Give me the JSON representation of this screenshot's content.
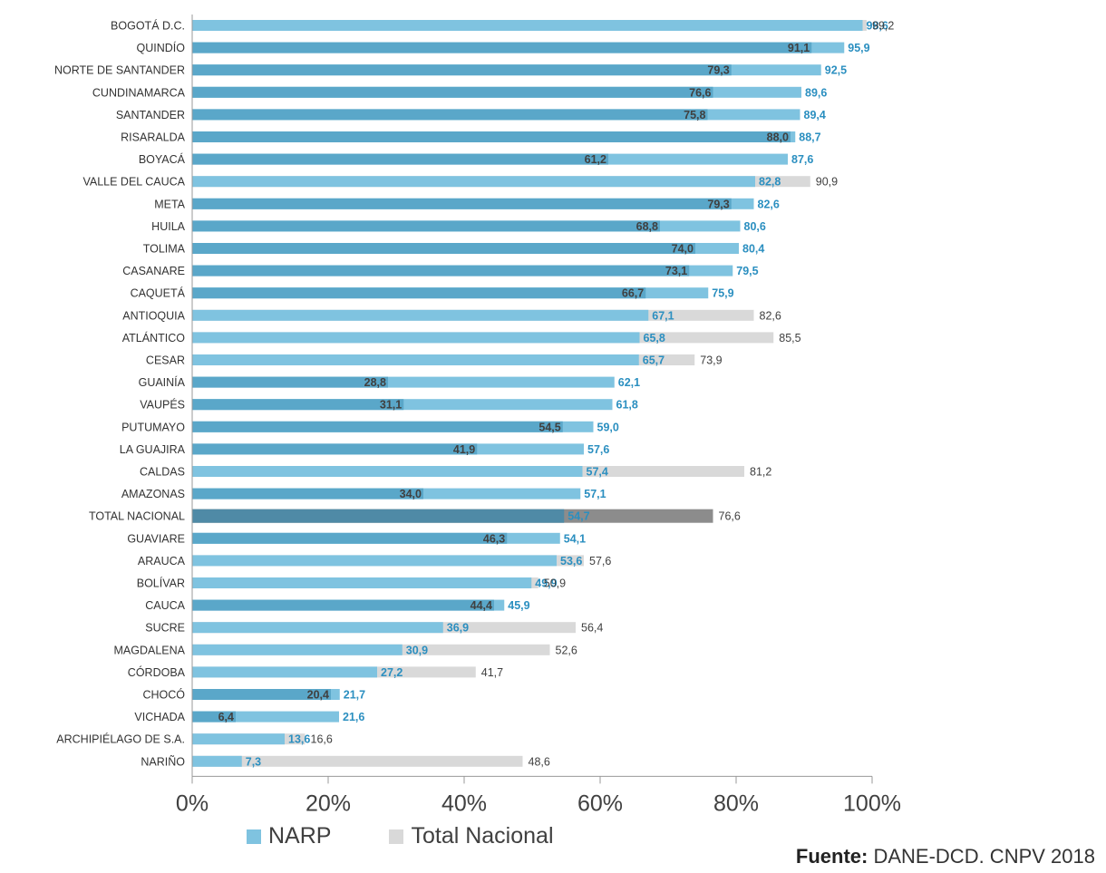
{
  "chart_data": {
    "type": "bar",
    "orientation": "horizontal",
    "categories": [
      "BOGOTÁ D.C.",
      "QUINDÍO",
      "NORTE DE SANTANDER",
      "CUNDINAMARCA",
      "SANTANDER",
      "RISARALDA",
      "BOYACÁ",
      "VALLE DEL CAUCA",
      "META",
      "HUILA",
      "TOLIMA",
      "CASANARE",
      "CAQUETÁ",
      "ANTIOQUIA",
      "ATLÁNTICO",
      "CESAR",
      "GUAINÍA",
      "VAUPÉS",
      "PUTUMAYO",
      "LA GUAJIRA",
      "CALDAS",
      "AMAZONAS",
      "TOTAL NACIONAL",
      "GUAVIARE",
      "ARAUCA",
      "BOLÍVAR",
      "CAUCA",
      "SUCRE",
      "MAGDALENA",
      "CÓRDOBA",
      "CHOCÓ",
      "VICHADA",
      "ARCHIPIÉLAGO DE S.A.",
      "NARIÑO"
    ],
    "series": [
      {
        "name": "NARP",
        "values": [
          98.6,
          95.9,
          92.5,
          89.6,
          89.4,
          88.7,
          87.6,
          82.8,
          82.6,
          80.6,
          80.4,
          79.5,
          75.9,
          67.1,
          65.8,
          65.7,
          62.1,
          61.8,
          59.0,
          57.6,
          57.4,
          57.1,
          54.7,
          54.1,
          53.6,
          49.9,
          45.9,
          36.9,
          30.9,
          27.2,
          21.7,
          21.6,
          13.6,
          7.3
        ],
        "labels": [
          "98,6",
          "95,9",
          "92,5",
          "89,6",
          "89,4",
          "88,7",
          "87,6",
          "82,8",
          "82,6",
          "80,6",
          "80,4",
          "79,5",
          "75,9",
          "67,1",
          "65,8",
          "65,7",
          "62,1",
          "61,8",
          "59,0",
          "57,6",
          "57,4",
          "57,1",
          "54,7",
          "54,1",
          "53,6",
          "49,9",
          "45,9",
          "36,9",
          "30,9",
          "27,2",
          "21,7",
          "21,6",
          "13,6",
          "7,3"
        ]
      },
      {
        "name": "Total Nacional",
        "values": [
          99.2,
          91.1,
          79.3,
          76.6,
          75.8,
          88.0,
          61.2,
          90.9,
          79.3,
          68.8,
          74.0,
          73.1,
          66.7,
          82.6,
          85.5,
          73.9,
          28.8,
          31.1,
          54.5,
          41.9,
          81.2,
          34.0,
          76.6,
          46.3,
          57.6,
          50.9,
          44.4,
          56.4,
          52.6,
          41.7,
          20.4,
          6.4,
          16.6,
          48.6
        ],
        "labels": [
          "99,2",
          "91,1",
          "79,3",
          "76,6",
          "75,8",
          "88,0",
          "61,2",
          "90,9",
          "79,3",
          "68,8",
          "74,0",
          "73,1",
          "66,7",
          "82,6",
          "85,5",
          "73,9",
          "28,8",
          "31,1",
          "54,5",
          "41,9",
          "81,2",
          "34,0",
          "76,6",
          "46,3",
          "57,6",
          "50,9",
          "44,4",
          "56,4",
          "52,6",
          "41,7",
          "20,4",
          "6,4",
          "16,6",
          "48,6"
        ]
      }
    ],
    "xlim": [
      0,
      100
    ],
    "ticks": [
      0,
      20,
      40,
      60,
      80,
      100
    ],
    "tick_labels": [
      "0%",
      "20%",
      "40%",
      "60%",
      "80%",
      "100%"
    ],
    "highlight_category": "TOTAL NACIONAL",
    "legend_position": "bottom-left",
    "grid": false
  },
  "legend": [
    {
      "label": "NARP",
      "color": "#7fc3e0"
    },
    {
      "label": "Total Nacional",
      "color": "#d9d9d9"
    }
  ],
  "source": {
    "prefix": "Fuente:",
    "text": " DANE-DCD. CNPV 2018"
  },
  "colors": {
    "narp": "#7fc3e0",
    "narp_dark": "#5aa7c9",
    "total": "#d9d9d9",
    "highlight_narp": "#4f8aa6",
    "highlight_total": "#8c8c8c",
    "narp_label": "#2b8fc0",
    "total_label": "#404040",
    "axis": "#999999"
  }
}
